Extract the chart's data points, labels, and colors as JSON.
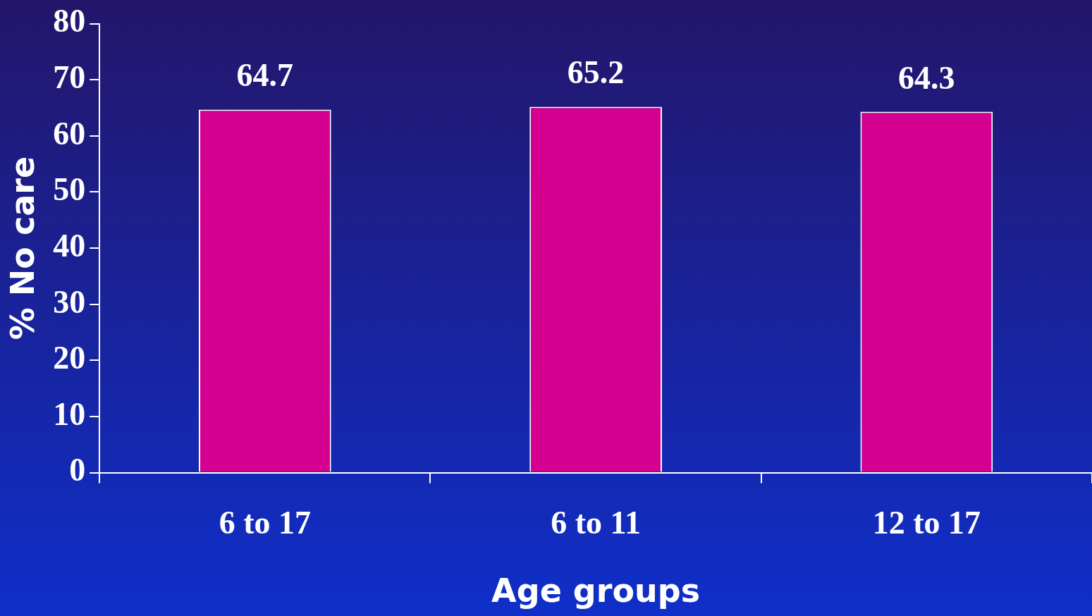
{
  "chart_data": {
    "type": "bar",
    "xlabel": "Age groups",
    "ylabel": "% No care",
    "categories": [
      "6 to 17",
      "6 to 11",
      "12 to 17"
    ],
    "values": [
      64.7,
      65.2,
      64.3
    ],
    "color": "#d4008f",
    "ylim": [
      0,
      80
    ],
    "yticks": [
      0,
      10,
      20,
      30,
      40,
      50,
      60,
      70,
      80
    ],
    "grid": false,
    "data_labels": true,
    "legend": false
  }
}
